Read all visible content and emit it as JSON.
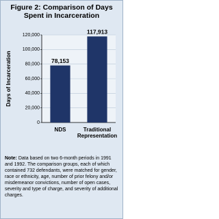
{
  "chart_data": {
    "type": "bar",
    "title": "Figure 2: Comparison of Days Spent in Incarceration",
    "y_label": "Days of Incarceration",
    "categories": [
      "NDS",
      "Traditional Representation"
    ],
    "values": [
      78153,
      117913
    ],
    "value_labels": [
      "78,153",
      "117,913"
    ],
    "color": "#1f3568",
    "ylim": [
      0,
      120000
    ],
    "yticks": [
      0,
      {
        "value": 20000,
        "label": "20,000"
      },
      {
        "value": 40000,
        "label": "40,000"
      },
      {
        "value": 60000,
        "label": "60,000"
      },
      {
        "value": 80000,
        "label": "80,000"
      },
      {
        "value": 100000,
        "label": "100,000"
      },
      {
        "value": 120000,
        "label": "120,000"
      }
    ],
    "grid": true,
    "note_label": "Note:",
    "note": "Data based on two 6-month periods in 1991 and 1992. The comparison groups, each of which contained 732 defendants, were matched for gender, race or ethnicity, age, number of prior felony and/or misdemeanor convictions, number of open cases, severity and type of charge, and severity of additional charges."
  }
}
